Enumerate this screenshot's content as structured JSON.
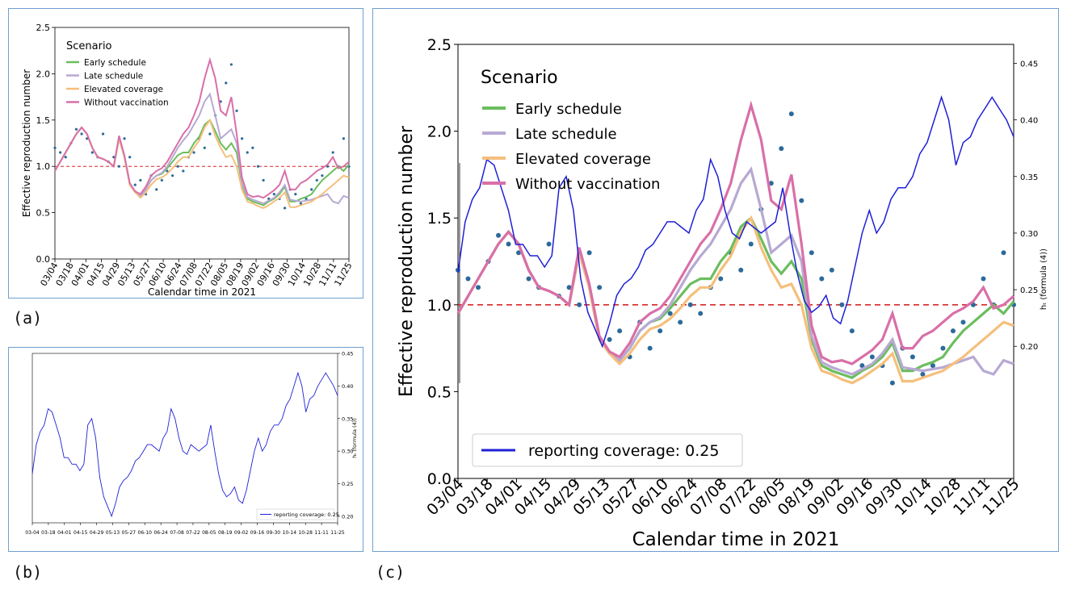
{
  "figure": {
    "labels": {
      "a": "(a)",
      "b": "(b)",
      "c": "(c)"
    }
  },
  "colors": {
    "early": "#6cbd5f",
    "late": "#b7a9d3",
    "elevated": "#f5bf7c",
    "without": "#d96fa8",
    "dots": "#2c6a9a",
    "reporting": "#1f20d6",
    "threshold": "#d62728"
  },
  "chart_data": [
    {
      "id": "a",
      "type": "line",
      "xlabel": "Calendar time in 2021",
      "ylabel": "Effective reproduction number",
      "x_ticks": [
        "03/04",
        "03/18",
        "04/01",
        "04/15",
        "04/29",
        "05/13",
        "05/27",
        "06/10",
        "06/24",
        "07/08",
        "07/22",
        "08/05",
        "08/19",
        "09/02",
        "09/16",
        "09/30",
        "10/14",
        "10/28",
        "11/11",
        "11/25"
      ],
      "y_ticks": [
        "0.0",
        "0.5",
        "1.0",
        "1.5",
        "2.0",
        "2.5"
      ],
      "ylim": [
        0,
        2.5
      ],
      "legend_title": "Scenario",
      "legend_placement": "top-left",
      "reference_line": 1.0
    },
    {
      "id": "b",
      "type": "line",
      "xlabel": "",
      "ylabel": "h_t (formula (4))",
      "x_ticks": [
        "03-04",
        "03-18",
        "04-01",
        "04-15",
        "04-29",
        "05-13",
        "05-27",
        "06-10",
        "06-24",
        "07-08",
        "07-22",
        "08-05",
        "08-19",
        "09-02",
        "09-16",
        "09-30",
        "10-14",
        "10-28",
        "11-11",
        "11-25"
      ],
      "y_ticks": [
        "0.20",
        "0.25",
        "0.30",
        "0.35",
        "0.40",
        "0.45"
      ],
      "ylim": [
        0.19,
        0.45
      ],
      "legend_placement": "bottom-right",
      "series": [
        {
          "name": "reporting coverage: 0.25",
          "values": [
            0.265,
            0.31,
            0.33,
            0.34,
            0.365,
            0.36,
            0.34,
            0.32,
            0.29,
            0.29,
            0.28,
            0.28,
            0.27,
            0.28,
            0.34,
            0.35,
            0.32,
            0.26,
            0.23,
            0.215,
            0.2,
            0.22,
            0.245,
            0.255,
            0.26,
            0.27,
            0.285,
            0.29,
            0.3,
            0.31,
            0.31,
            0.305,
            0.3,
            0.32,
            0.33,
            0.365,
            0.35,
            0.32,
            0.3,
            0.295,
            0.31,
            0.305,
            0.3,
            0.305,
            0.31,
            0.34,
            0.3,
            0.265,
            0.24,
            0.23,
            0.235,
            0.245,
            0.225,
            0.22,
            0.24,
            0.27,
            0.3,
            0.32,
            0.3,
            0.31,
            0.33,
            0.34,
            0.34,
            0.35,
            0.37,
            0.38,
            0.4,
            0.42,
            0.4,
            0.36,
            0.38,
            0.385,
            0.4,
            0.41,
            0.42,
            0.41,
            0.4,
            0.385
          ]
        }
      ]
    },
    {
      "id": "c",
      "type": "line",
      "xlabel": "Calendar time in 2021",
      "ylabel": "Effective reproduction number",
      "y2label": "h_t (formula (4))",
      "x_ticks": [
        "03/04",
        "03/18",
        "04/01",
        "04/15",
        "04/29",
        "05/13",
        "05/27",
        "06/10",
        "06/24",
        "07/08",
        "07/22",
        "08/05",
        "08/19",
        "09/02",
        "09/16",
        "09/30",
        "10/14",
        "10/28",
        "11/11",
        "11/25"
      ],
      "y_ticks": [
        "0.0",
        "0.5",
        "1.0",
        "1.5",
        "2.0",
        "2.5"
      ],
      "y2_ticks": [
        "0.20",
        "0.25",
        "0.30",
        "0.35",
        "0.40",
        "0.45"
      ],
      "ylim": [
        0,
        2.5
      ],
      "y2lim": [
        0.0833,
        0.4667
      ],
      "legend_title": "Scenario",
      "legend_placement": "top-left",
      "reference_line": 1.0,
      "series": [
        {
          "name": "Early schedule",
          "values": [
            0.95,
            1.05,
            1.15,
            1.25,
            1.35,
            1.42,
            1.35,
            1.2,
            1.1,
            1.08,
            1.05,
            1.0,
            1.3,
            1.1,
            0.8,
            0.72,
            0.68,
            0.75,
            0.85,
            0.9,
            0.92,
            0.98,
            1.05,
            1.12,
            1.15,
            1.15,
            1.25,
            1.32,
            1.45,
            1.5,
            1.38,
            1.25,
            1.18,
            1.25,
            1.15,
            0.8,
            0.65,
            0.62,
            0.6,
            0.58,
            0.62,
            0.65,
            0.7,
            0.78,
            0.62,
            0.62,
            0.65,
            0.67,
            0.7,
            0.78,
            0.85,
            0.9,
            0.95,
            1.0,
            0.95,
            1.02
          ]
        },
        {
          "name": "Late schedule",
          "values": [
            0.95,
            1.05,
            1.15,
            1.25,
            1.35,
            1.42,
            1.35,
            1.2,
            1.1,
            1.08,
            1.05,
            1.0,
            1.3,
            1.1,
            0.8,
            0.72,
            0.68,
            0.75,
            0.85,
            0.9,
            0.93,
            1.0,
            1.1,
            1.2,
            1.28,
            1.35,
            1.45,
            1.55,
            1.7,
            1.78,
            1.55,
            1.3,
            1.35,
            1.4,
            1.25,
            0.82,
            0.67,
            0.64,
            0.62,
            0.6,
            0.63,
            0.66,
            0.72,
            0.8,
            0.64,
            0.63,
            0.62,
            0.63,
            0.64,
            0.66,
            0.68,
            0.7,
            0.62,
            0.6,
            0.68,
            0.66
          ]
        },
        {
          "name": "Elevated coverage",
          "values": [
            0.95,
            1.05,
            1.15,
            1.25,
            1.35,
            1.42,
            1.35,
            1.2,
            1.1,
            1.08,
            1.05,
            1.0,
            1.3,
            1.1,
            0.8,
            0.72,
            0.66,
            0.72,
            0.8,
            0.86,
            0.88,
            0.92,
            0.98,
            1.05,
            1.1,
            1.1,
            1.2,
            1.28,
            1.42,
            1.5,
            1.33,
            1.2,
            1.1,
            1.12,
            1.0,
            0.75,
            0.62,
            0.6,
            0.57,
            0.55,
            0.58,
            0.62,
            0.66,
            0.72,
            0.56,
            0.56,
            0.58,
            0.6,
            0.62,
            0.66,
            0.7,
            0.75,
            0.8,
            0.85,
            0.9,
            0.88
          ]
        },
        {
          "name": "Without vaccination",
          "values": [
            0.95,
            1.05,
            1.15,
            1.25,
            1.35,
            1.42,
            1.35,
            1.2,
            1.1,
            1.08,
            1.05,
            1.0,
            1.33,
            1.12,
            0.82,
            0.73,
            0.7,
            0.78,
            0.9,
            0.95,
            0.98,
            1.05,
            1.15,
            1.25,
            1.35,
            1.42,
            1.55,
            1.7,
            1.95,
            2.15,
            1.95,
            1.6,
            1.55,
            1.75,
            1.35,
            0.88,
            0.7,
            0.67,
            0.68,
            0.66,
            0.7,
            0.74,
            0.8,
            0.95,
            0.75,
            0.75,
            0.82,
            0.85,
            0.9,
            0.95,
            0.98,
            1.02,
            1.1,
            0.98,
            1.0,
            1.05
          ]
        },
        {
          "name": "reporting coverage: 0.25",
          "axis": "right",
          "values": [
            0.265,
            0.31,
            0.33,
            0.34,
            0.365,
            0.36,
            0.34,
            0.32,
            0.29,
            0.29,
            0.28,
            0.28,
            0.27,
            0.28,
            0.34,
            0.35,
            0.32,
            0.26,
            0.23,
            0.215,
            0.2,
            0.22,
            0.245,
            0.255,
            0.26,
            0.27,
            0.285,
            0.29,
            0.3,
            0.31,
            0.31,
            0.305,
            0.3,
            0.32,
            0.33,
            0.365,
            0.35,
            0.32,
            0.3,
            0.295,
            0.31,
            0.305,
            0.3,
            0.305,
            0.31,
            0.34,
            0.3,
            0.265,
            0.24,
            0.23,
            0.235,
            0.245,
            0.225,
            0.22,
            0.24,
            0.27,
            0.3,
            0.32,
            0.3,
            0.31,
            0.33,
            0.34,
            0.34,
            0.35,
            0.37,
            0.38,
            0.4,
            0.42,
            0.4,
            0.36,
            0.38,
            0.385,
            0.4,
            0.41,
            0.42,
            0.41,
            0.4,
            0.385
          ]
        }
      ],
      "observed_points": [
        1.2,
        1.15,
        1.1,
        1.25,
        1.4,
        1.35,
        1.3,
        1.15,
        1.1,
        1.35,
        1.05,
        1.1,
        1.0,
        1.3,
        1.1,
        0.8,
        0.85,
        0.7,
        0.9,
        0.75,
        0.85,
        0.95,
        0.9,
        1.0,
        0.95,
        1.1,
        1.15,
        1.3,
        1.2,
        1.35,
        1.55,
        1.7,
        1.9,
        2.1,
        1.6,
        1.3,
        1.15,
        1.2,
        1.0,
        0.85,
        0.65,
        0.7,
        0.65,
        0.55,
        0.75,
        0.7,
        0.6,
        0.65,
        0.75,
        0.85,
        0.9,
        1.0,
        1.15,
        1.0,
        1.3,
        1.0
      ]
    }
  ]
}
